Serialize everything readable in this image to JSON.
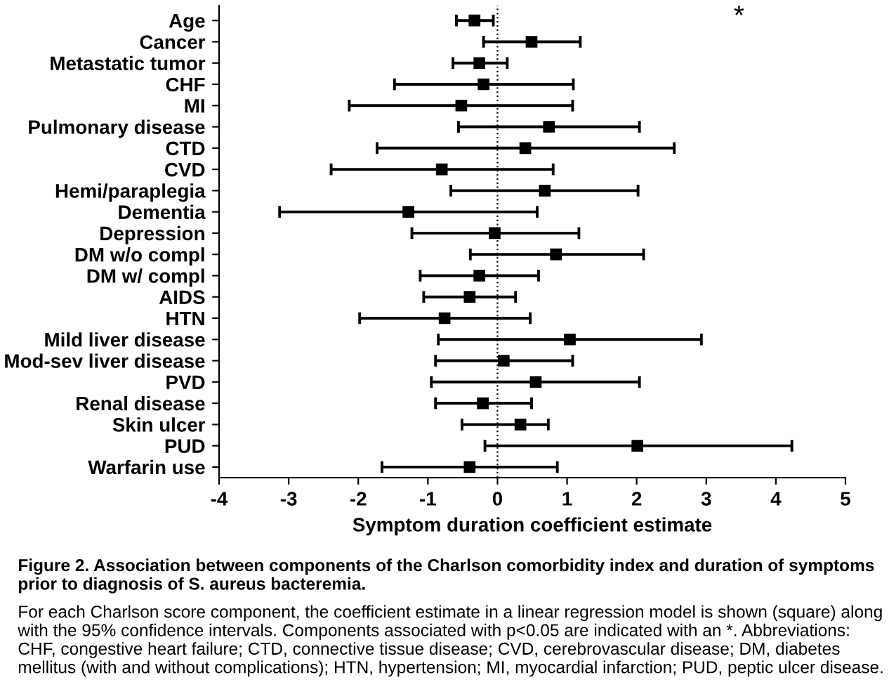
{
  "chart_data": {
    "type": "scatter",
    "orientation": "horizontal",
    "xlabel": "Symptom duration coefficient estimate",
    "categories": [
      "Age",
      "Cancer",
      "Metastatic tumor",
      "CHF",
      "MI",
      "Pulmonary disease",
      "CTD",
      "CVD",
      "Hemi/paraplegia",
      "Dementia",
      "Depression",
      "DM w/o compl",
      "DM w/ compl",
      "AIDS",
      "HTN",
      "Mild liver disease",
      "Mod-sev liver disease",
      "PVD",
      "Renal disease",
      "Skin ulcer",
      "PUD",
      "Warfarin use"
    ],
    "values": [
      -0.33,
      0.49,
      -0.26,
      -0.2,
      -0.52,
      0.74,
      0.4,
      -0.8,
      0.68,
      -1.28,
      -0.04,
      0.84,
      -0.26,
      -0.4,
      -0.76,
      1.04,
      0.09,
      0.55,
      -0.21,
      0.33,
      2.01,
      -0.4
    ],
    "errors": [
      [
        -0.59,
        -0.06
      ],
      [
        -0.2,
        1.19
      ],
      [
        -0.64,
        0.14
      ],
      [
        -1.48,
        1.09
      ],
      [
        -2.13,
        1.08
      ],
      [
        -0.56,
        2.04
      ],
      [
        -1.73,
        2.54
      ],
      [
        -2.39,
        0.8
      ],
      [
        -0.67,
        2.02
      ],
      [
        -3.13,
        0.57
      ],
      [
        -1.23,
        1.17
      ],
      [
        -0.39,
        2.1
      ],
      [
        -1.11,
        0.59
      ],
      [
        -1.06,
        0.26
      ],
      [
        -1.98,
        0.47
      ],
      [
        -0.85,
        2.93
      ],
      [
        -0.89,
        1.08
      ],
      [
        -0.95,
        2.04
      ],
      [
        -0.89,
        0.49
      ],
      [
        -0.51,
        0.73
      ],
      [
        -0.18,
        4.23
      ],
      [
        -1.66,
        0.86
      ]
    ],
    "color": "#000000",
    "marker": "square",
    "xlim": [
      -4,
      5
    ],
    "xticks": [
      -4,
      -3,
      -2,
      -1,
      0,
      1,
      2,
      3,
      4,
      5
    ],
    "ref_lines": [
      {
        "axis": "x",
        "value": 0,
        "line_style": "dotted"
      }
    ],
    "annotations": [
      "*",
      "Figure 2. Association between components of the Charlson comorbidity index and duration of symptoms prior to diagnosis of S. aureus bacteremia.",
      "For each Charlson score component, the coefficient estimate in a linear regression model is shown (square) along with the 95% confidence intervals. Components associated with p<0.05 are indicated with an *. Abbreviations: CHF, congestive heart failure; CTD, connective tissue disease; CVD, cerebrovascular disease; DM, diabetes mellitus (with and without complications); HTN, hypertension; MI, myocardial infarction; PUD, peptic ulcer disease."
    ]
  }
}
